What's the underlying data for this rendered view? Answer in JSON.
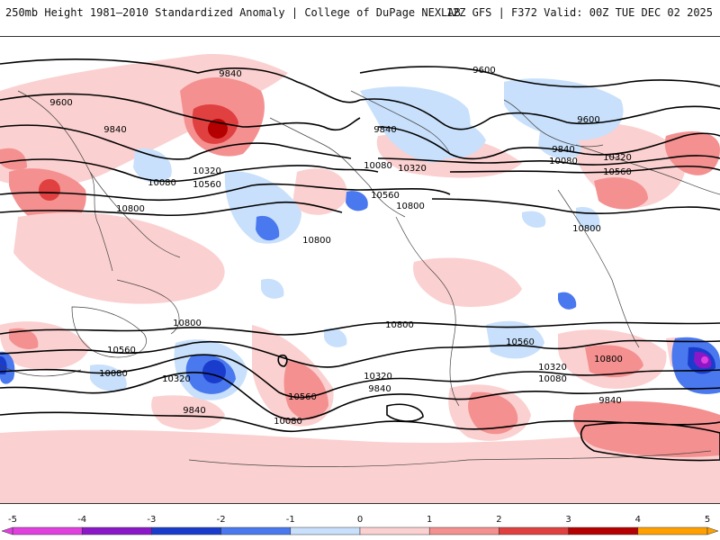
{
  "header": {
    "title": "250mb Height 1981–2010 Standardized Anomaly | College of DuPage NEXLAB",
    "run_info": "12Z GFS | F372 Valid: 00Z TUE DEC 02 2025"
  },
  "map": {
    "contours": [
      {
        "label": "9840",
        "id": "c9840-a"
      },
      {
        "label": "9600",
        "id": "c9600-a"
      },
      {
        "label": "9840",
        "id": "c9840-b"
      },
      {
        "label": "10320",
        "id": "c10320-a"
      },
      {
        "label": "10080",
        "id": "c10080-a"
      },
      {
        "label": "10560",
        "id": "c10560-a"
      },
      {
        "label": "10800",
        "id": "c10800-a"
      },
      {
        "label": "10800",
        "id": "c10800-b"
      },
      {
        "label": "10080",
        "id": "c10080-b"
      },
      {
        "label": "10320",
        "id": "c10320-b"
      },
      {
        "label": "10560",
        "id": "c10560-b"
      },
      {
        "label": "10800",
        "id": "c10800-c"
      },
      {
        "label": "9600",
        "id": "c9600-b"
      },
      {
        "label": "9840",
        "id": "c9840-c"
      },
      {
        "label": "9600",
        "id": "c9600-c"
      },
      {
        "label": "9840",
        "id": "c9840-d"
      },
      {
        "label": "10080",
        "id": "c10080-c"
      },
      {
        "label": "10320",
        "id": "c10320-c"
      },
      {
        "label": "10560",
        "id": "c10560-c"
      },
      {
        "label": "10800",
        "id": "c10800-d"
      },
      {
        "label": "10800",
        "id": "c10800-e"
      },
      {
        "label": "10560",
        "id": "c10560-d"
      },
      {
        "label": "10080",
        "id": "c10080-d"
      },
      {
        "label": "10320",
        "id": "c10320-d"
      },
      {
        "label": "9840",
        "id": "c9840-e"
      },
      {
        "label": "10560",
        "id": "c10560-e"
      },
      {
        "label": "10080",
        "id": "c10080-e"
      },
      {
        "label": "10320",
        "id": "c10320-e"
      },
      {
        "label": "9840",
        "id": "c9840-f"
      },
      {
        "label": "10800",
        "id": "c10800-f"
      },
      {
        "label": "10560",
        "id": "c10560-f"
      },
      {
        "label": "10320",
        "id": "c10320-f"
      },
      {
        "label": "10080",
        "id": "c10080-f"
      },
      {
        "label": "9840",
        "id": "c9840-g"
      },
      {
        "label": "10800",
        "id": "c10800-g"
      }
    ]
  },
  "colorbar": {
    "ticks": [
      "-5",
      "-4",
      "-3",
      "-2",
      "-1",
      "0",
      "1",
      "2",
      "3",
      "4",
      "5"
    ],
    "colors": [
      "#e040e0",
      "#8a18c8",
      "#1a3ccc",
      "#4a78ee",
      "#c8e0fb",
      "#ffffff",
      "#fbd0d0",
      "#f49090",
      "#e04040",
      "#b40000",
      "#ffa000"
    ]
  }
}
